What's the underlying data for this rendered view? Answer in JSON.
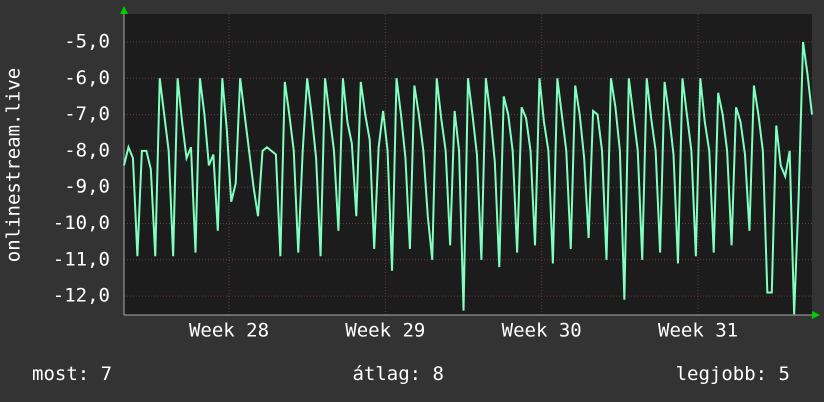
{
  "chart_data": {
    "type": "line",
    "y_label": "onlinestream.live",
    "x": [
      0,
      1,
      2,
      3,
      4,
      5,
      6,
      7,
      8,
      9,
      10,
      11,
      12,
      13,
      14,
      15,
      16,
      17,
      18,
      19,
      20,
      21,
      22,
      23,
      24,
      25,
      26,
      27,
      28,
      29,
      30,
      31,
      32,
      33,
      34,
      35,
      36,
      37,
      38,
      39,
      40,
      41,
      42,
      43,
      44,
      45,
      46,
      47,
      48,
      49,
      50,
      51,
      52,
      53,
      54,
      55,
      56,
      57,
      58,
      59,
      60,
      61,
      62,
      63,
      64,
      65,
      66,
      67,
      68,
      69,
      70,
      71,
      72,
      73,
      74,
      75,
      76,
      77,
      78,
      79,
      80,
      81,
      82,
      83,
      84,
      85,
      86,
      87,
      88,
      89,
      90,
      91,
      92,
      93,
      94,
      95,
      96,
      97,
      98,
      99,
      100,
      101,
      102,
      103,
      104,
      105,
      106,
      107,
      108,
      109,
      110,
      111,
      112,
      113,
      114,
      115,
      116,
      117,
      118,
      119,
      120,
      121,
      122,
      123,
      124,
      125,
      126,
      127,
      128,
      129,
      130,
      131,
      132,
      133,
      134,
      135,
      136,
      137,
      138,
      139,
      140,
      141,
      142,
      143,
      144,
      145,
      146,
      147,
      148,
      149,
      150,
      151,
      152,
      153,
      154
    ],
    "series": [
      {
        "color": "#80ffc0",
        "values": [
          -8.4,
          -7.9,
          -8.2,
          -10.9,
          -8.0,
          -8.0,
          -8.5,
          -10.9,
          -6.0,
          -7.0,
          -8.0,
          -10.9,
          -6.0,
          -7.2,
          -8.2,
          -7.9,
          -10.8,
          -6.0,
          -7.0,
          -8.4,
          -8.1,
          -10.2,
          -6.0,
          -7.4,
          -9.4,
          -8.9,
          -6.0,
          -7.0,
          -8.0,
          -9.0,
          -9.8,
          -8.0,
          -7.9,
          -8.0,
          -8.1,
          -10.9,
          -6.1,
          -7.0,
          -8.0,
          -10.8,
          -8.0,
          -6.0,
          -7.0,
          -8.2,
          -10.9,
          -6.0,
          -7.0,
          -8.0,
          -10.2,
          -6.0,
          -7.2,
          -7.8,
          -9.8,
          -6.1,
          -7.0,
          -7.7,
          -10.7,
          -7.9,
          -6.9,
          -8.0,
          -11.3,
          -6.0,
          -7.0,
          -8.2,
          -10.7,
          -6.2,
          -7.0,
          -8.0,
          -9.8,
          -11.0,
          -6.0,
          -7.1,
          -8.0,
          -10.6,
          -6.9,
          -8.0,
          -12.4,
          -6.0,
          -7.0,
          -8.1,
          -11.0,
          -6.0,
          -7.0,
          -8.3,
          -11.2,
          -6.5,
          -7.0,
          -8.0,
          -10.8,
          -6.8,
          -7.1,
          -8.0,
          -10.6,
          -6.0,
          -7.2,
          -8.0,
          -11.1,
          -6.0,
          -7.0,
          -8.0,
          -10.7,
          -6.2,
          -7.0,
          -8.2,
          -10.4,
          -6.9,
          -7.0,
          -8.0,
          -11.0,
          -6.0,
          -6.8,
          -8.0,
          -12.1,
          -6.0,
          -7.0,
          -8.0,
          -11.0,
          -6.0,
          -7.1,
          -8.0,
          -10.8,
          -6.1,
          -7.0,
          -8.1,
          -11.1,
          -6.0,
          -7.0,
          -8.0,
          -10.9,
          -6.0,
          -7.2,
          -8.0,
          -10.8,
          -6.4,
          -7.0,
          -8.0,
          -10.6,
          -6.8,
          -7.2,
          -8.1,
          -10.2,
          -6.2,
          -7.0,
          -8.0,
          -11.9,
          -11.9,
          -7.3,
          -8.4,
          -8.7,
          -8.0,
          -12.5,
          -9.3,
          -5.0,
          -5.9,
          -7.0
        ]
      }
    ],
    "xlim": [
      0,
      154
    ],
    "xticks": [
      {
        "value": 23.5,
        "label": "Week 28"
      },
      {
        "value": 58.5,
        "label": "Week 29"
      },
      {
        "value": 93.5,
        "label": "Week 30"
      },
      {
        "value": 128.5,
        "label": "Week 31"
      }
    ],
    "ylim": [
      -12.52,
      -4.23
    ],
    "yticks": [
      {
        "value": -12,
        "label": "-12,0"
      },
      {
        "value": -11,
        "label": "-11,0"
      },
      {
        "value": -10,
        "label": "-10,0"
      },
      {
        "value": -9,
        "label": "-9,0"
      },
      {
        "value": -8,
        "label": "-8,0"
      },
      {
        "value": -7,
        "label": "-7,0"
      },
      {
        "value": -6,
        "label": "-6,0"
      },
      {
        "value": -5,
        "label": "-5,0"
      }
    ],
    "grid": true,
    "stats": [
      {
        "label": "most:",
        "value": 7
      },
      {
        "label": "átlag:",
        "value": 8
      },
      {
        "label": "legjobb:",
        "value": 5
      }
    ]
  }
}
